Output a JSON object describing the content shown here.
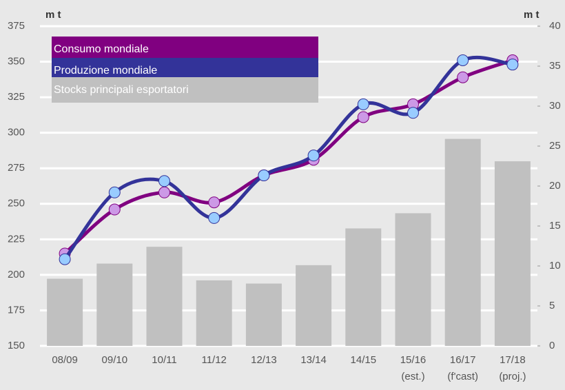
{
  "chart_data": {
    "type": "bar-line",
    "y_unit_label": "m t",
    "y2_unit_label": "m t",
    "categories": [
      "08/09",
      "09/10",
      "10/11",
      "11/12",
      "12/13",
      "13/14",
      "14/15",
      "15/16 (est.)",
      "16/17 (f'cast)",
      "17/18 (proj.)"
    ],
    "series": [
      {
        "name": "Consumo mondiale",
        "color": "#800080",
        "marker_color": "#cc99e6",
        "type": "line",
        "values": [
          215,
          246,
          258,
          251,
          270,
          281,
          311,
          320,
          339,
          351
        ]
      },
      {
        "name": "Produzione mondiale",
        "color": "#333399",
        "marker_color": "#99ccff",
        "type": "line",
        "values": [
          211,
          258,
          266,
          240,
          270,
          284,
          320,
          314,
          351,
          348
        ]
      },
      {
        "name": "Stocks principali esportatori",
        "color": "#c0c0c0",
        "type": "bar",
        "axis": "y2",
        "values": [
          8.4,
          10.3,
          12.4,
          8.2,
          7.8,
          10.1,
          14.7,
          16.6,
          25.9,
          23.1
        ]
      }
    ],
    "ylim": [
      150,
      375
    ],
    "yticks": [
      150,
      175,
      200,
      225,
      250,
      275,
      300,
      325,
      350,
      375
    ],
    "y2lim": [
      0,
      40
    ],
    "y2ticks": [
      0,
      5,
      10,
      15,
      20,
      25,
      30,
      35,
      40
    ],
    "grid": true
  }
}
